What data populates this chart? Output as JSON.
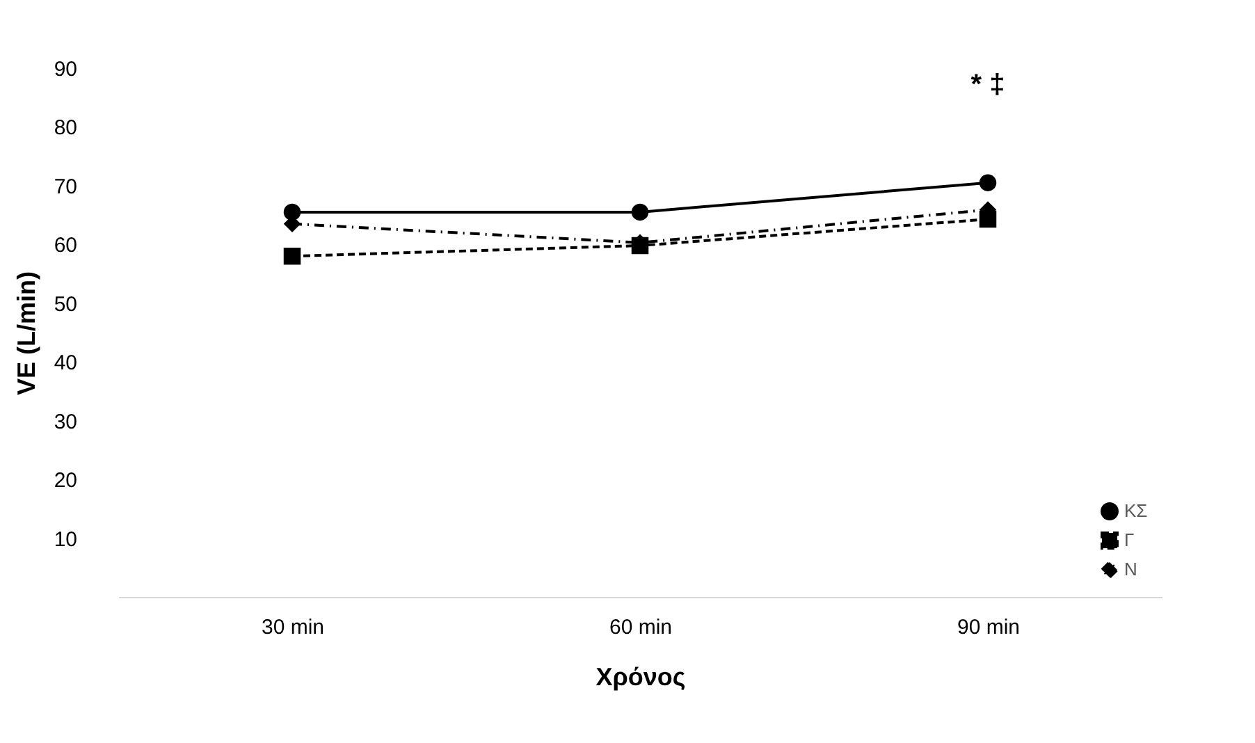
{
  "chart_data": {
    "type": "line",
    "xlabel": "Χρόνος",
    "ylabel": "VE (L/min)",
    "categories": [
      "30 min",
      "60 min",
      "90 min"
    ],
    "series": [
      {
        "name": "ΚΣ",
        "color": "#000000",
        "marker": "circle",
        "line_style": "solid",
        "values": [
          65.5,
          65.5,
          70.5
        ]
      },
      {
        "name": "Γ",
        "color": "#000000",
        "marker": "square",
        "line_style": "dashed",
        "values": [
          58,
          59.8,
          64.3
        ]
      },
      {
        "name": "Ν",
        "color": "#000000",
        "marker": "diamond",
        "line_style": "dashdot",
        "values": [
          63.5,
          60.3,
          65.9
        ]
      }
    ],
    "ylim": [
      0,
      90
    ],
    "yticks": [
      10,
      20,
      30,
      40,
      50,
      60,
      70,
      80,
      90
    ],
    "grid": false,
    "legend": "bottom right",
    "annotations": [
      "* ‡"
    ]
  }
}
